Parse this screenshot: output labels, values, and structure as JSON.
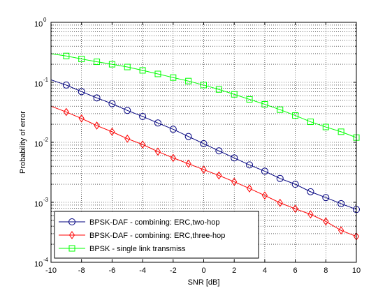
{
  "chart_data": {
    "type": "line",
    "title": "",
    "xlabel": "SNR [dB]",
    "ylabel": "Probability of error",
    "xlim": [
      -10,
      10
    ],
    "ylim": [
      0.0001,
      1
    ],
    "yscale": "log",
    "grid": true,
    "legend_position": "bottom-left",
    "x_ticks": [
      -10,
      -8,
      -6,
      -4,
      -2,
      0,
      2,
      4,
      6,
      8,
      10
    ],
    "x_tick_labels": [
      "-10",
      "-8",
      "-6",
      "-4",
      "-2",
      "0",
      "2",
      "4",
      "6",
      "8",
      "10"
    ],
    "y_ticks": [
      0.0001,
      0.001,
      0.01,
      0.1,
      1
    ],
    "y_tick_labels": [
      {
        "base": "10",
        "exp": "-4"
      },
      {
        "base": "10",
        "exp": "-3"
      },
      {
        "base": "10",
        "exp": "-2"
      },
      {
        "base": "10",
        "exp": "-1"
      },
      {
        "base": "10",
        "exp": "0"
      }
    ],
    "series": [
      {
        "name": "BPSK-DAF - combining: ERC,two-hop",
        "color": "#00007f",
        "marker": "circle",
        "x": [
          -10,
          -9,
          -8,
          -7,
          -6,
          -5,
          -4,
          -3,
          -2,
          -1,
          0,
          1,
          2,
          3,
          4,
          5,
          6,
          7,
          8,
          9,
          10
        ],
        "y": [
          0.11,
          0.09,
          0.07,
          0.055,
          0.044,
          0.034,
          0.027,
          0.021,
          0.0165,
          0.0125,
          0.0095,
          0.0072,
          0.0055,
          0.0042,
          0.0033,
          0.0025,
          0.002,
          0.0015,
          0.0012,
          0.00095,
          0.00076
        ],
        "marker_x": [
          -9,
          -8,
          -7,
          -6,
          -5,
          -4,
          -3,
          -2,
          -1,
          0,
          1,
          2,
          3,
          4,
          5,
          6,
          7,
          8,
          9,
          10
        ]
      },
      {
        "name": "BPSK-DAF - combining: ERC,three-hop",
        "color": "#ff0000",
        "marker": "diamond",
        "x": [
          -10,
          -9,
          -8,
          -7,
          -6,
          -5,
          -4,
          -3,
          -2,
          -1,
          0,
          1,
          2,
          3,
          4,
          5,
          6,
          7,
          8,
          9,
          10
        ],
        "y": [
          0.04,
          0.032,
          0.025,
          0.019,
          0.015,
          0.0115,
          0.0092,
          0.007,
          0.0055,
          0.0044,
          0.0035,
          0.0028,
          0.0022,
          0.0017,
          0.0013,
          0.00098,
          0.00078,
          0.00063,
          0.00048,
          0.00034,
          0.00027
        ],
        "marker_x": [
          -9,
          -8,
          -7,
          -6,
          -5,
          -4,
          -3,
          -2,
          -1,
          0,
          1,
          2,
          3,
          4,
          5,
          6,
          7,
          8,
          9,
          10
        ]
      },
      {
        "name": "BPSK - single link transmiss",
        "color": "#00ff00",
        "marker": "square",
        "x": [
          -10,
          -9,
          -8,
          -7,
          -6,
          -5,
          -4,
          -3,
          -2,
          -1,
          0,
          1,
          2,
          3,
          4,
          5,
          6,
          7,
          8,
          9,
          10
        ],
        "y": [
          0.3,
          0.275,
          0.245,
          0.22,
          0.2,
          0.18,
          0.158,
          0.138,
          0.12,
          0.105,
          0.09,
          0.076,
          0.063,
          0.052,
          0.043,
          0.035,
          0.028,
          0.022,
          0.018,
          0.015,
          0.012
        ],
        "marker_x": [
          -9,
          -8,
          -7,
          -6,
          -5,
          -4,
          -3,
          -2,
          -1,
          0,
          1,
          2,
          3,
          4,
          5,
          6,
          7,
          8,
          9,
          10
        ]
      }
    ]
  }
}
